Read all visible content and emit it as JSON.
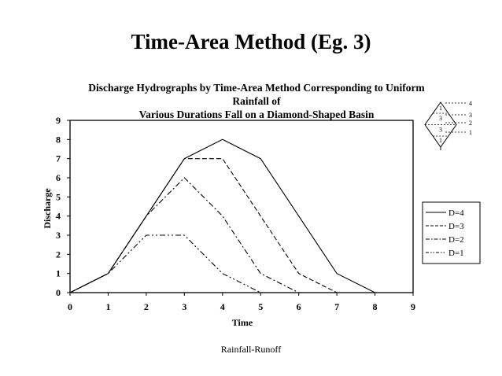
{
  "slide": {
    "title": "Time-Area Method (Eg. 3)",
    "footer": "Rainfall-Runoff"
  },
  "chart_data": {
    "type": "line",
    "title_line1": "Discharge Hydrographs by Time-Area Method Corresponding to Uniform Rainfall of",
    "title_line2": "Various Durations Fall on a Diamond-Shaped Basin",
    "xlabel": "Time",
    "ylabel": "Discharge",
    "xlim": [
      0,
      9
    ],
    "ylim": [
      0,
      9
    ],
    "xticks": [
      "0",
      "1",
      "2",
      "3",
      "4",
      "5",
      "6",
      "7",
      "8",
      "9"
    ],
    "yticks": [
      "0",
      "1",
      "2",
      "3",
      "4",
      "5",
      "6",
      "7",
      "8",
      "9"
    ],
    "legend_position": "right",
    "series": [
      {
        "name": "D=4",
        "style": "solid",
        "points": [
          [
            0,
            0
          ],
          [
            1,
            1
          ],
          [
            2,
            4
          ],
          [
            3,
            7
          ],
          [
            4,
            8
          ],
          [
            5,
            7
          ],
          [
            6,
            4
          ],
          [
            7,
            1
          ],
          [
            8,
            0
          ]
        ]
      },
      {
        "name": "D=3",
        "style": "dashed",
        "points": [
          [
            0,
            0
          ],
          [
            1,
            1
          ],
          [
            2,
            4
          ],
          [
            3,
            7
          ],
          [
            4,
            7
          ],
          [
            5,
            4
          ],
          [
            6,
            1
          ],
          [
            7,
            0
          ]
        ]
      },
      {
        "name": "D=2",
        "style": "dashdot",
        "points": [
          [
            0,
            0
          ],
          [
            1,
            1
          ],
          [
            2,
            4
          ],
          [
            3,
            6
          ],
          [
            4,
            4
          ],
          [
            5,
            1
          ],
          [
            6,
            0
          ]
        ]
      },
      {
        "name": "D=1",
        "style": "dashdotdot",
        "points": [
          [
            0,
            0
          ],
          [
            1,
            1
          ],
          [
            2,
            3
          ],
          [
            3,
            3
          ],
          [
            4,
            1
          ],
          [
            5,
            0
          ]
        ]
      }
    ],
    "basin_diagram": {
      "zone_labels": [
        "1",
        "3",
        "3",
        "1"
      ],
      "isochrone_labels": [
        "4",
        "3",
        "2",
        "1"
      ]
    }
  }
}
